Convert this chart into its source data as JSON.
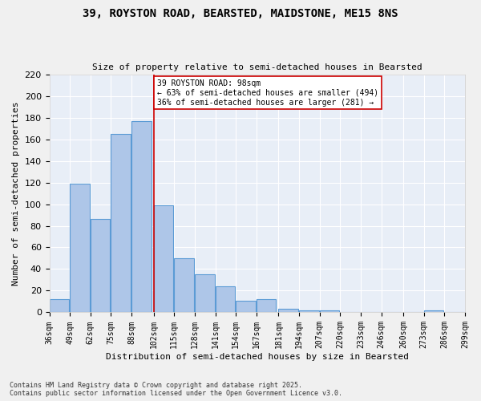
{
  "title_line1": "39, ROYSTON ROAD, BEARSTED, MAIDSTONE, ME15 8NS",
  "title_line2": "Size of property relative to semi-detached houses in Bearsted",
  "xlabel": "Distribution of semi-detached houses by size in Bearsted",
  "ylabel": "Number of semi-detached properties",
  "bar_color": "#aec6e8",
  "bar_edge_color": "#5b9bd5",
  "bg_color": "#e8eef7",
  "grid_color": "#ffffff",
  "bins": [
    36,
    49,
    62,
    75,
    88,
    102,
    115,
    128,
    141,
    154,
    167,
    181,
    194,
    207,
    220,
    233,
    246,
    260,
    273,
    286,
    299
  ],
  "bin_labels": [
    "36sqm",
    "49sqm",
    "62sqm",
    "75sqm",
    "88sqm",
    "102sqm",
    "115sqm",
    "128sqm",
    "141sqm",
    "154sqm",
    "167sqm",
    "181sqm",
    "194sqm",
    "207sqm",
    "220sqm",
    "233sqm",
    "246sqm",
    "260sqm",
    "273sqm",
    "286sqm",
    "299sqm"
  ],
  "values": [
    12,
    119,
    86,
    165,
    177,
    99,
    50,
    35,
    24,
    11,
    12,
    3,
    2,
    2,
    0,
    0,
    0,
    0,
    2,
    0
  ],
  "property_size": 98,
  "property_label": "39 ROYSTON ROAD: 98sqm",
  "pct_smaller": 63,
  "pct_larger": 36,
  "n_smaller": 494,
  "n_larger": 281,
  "annotation_line1": "39 ROYSTON ROAD: 98sqm",
  "annotation_line2": "← 63% of semi-detached houses are smaller (494)",
  "annotation_line3": "36% of semi-detached houses are larger (281) →",
  "vline_color": "#cc0000",
  "vline_x": 102,
  "ylim": [
    0,
    220
  ],
  "yticks": [
    0,
    20,
    40,
    60,
    80,
    100,
    120,
    140,
    160,
    180,
    200,
    220
  ],
  "footnote1": "Contains HM Land Registry data © Crown copyright and database right 2025.",
  "footnote2": "Contains public sector information licensed under the Open Government Licence v3.0."
}
